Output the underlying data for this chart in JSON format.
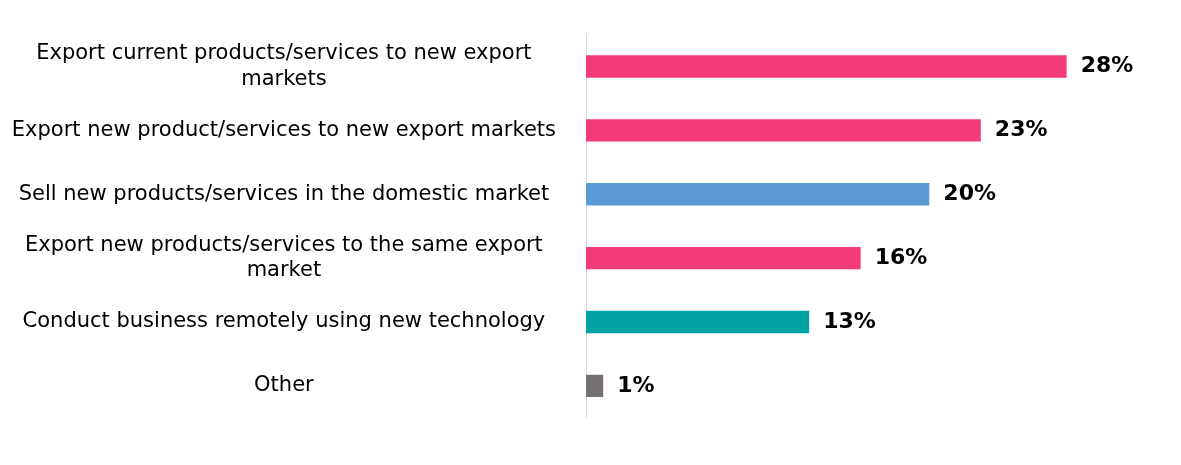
{
  "chart_data": {
    "type": "bar",
    "orientation": "horizontal",
    "categories": [
      "Export current products/services to new export markets",
      "Export new product/services to new export markets",
      "Sell new products/services in the domestic market",
      "Export new products/services to the same export market",
      "Conduct business remotely using new technology",
      "Other"
    ],
    "values": [
      28,
      23,
      20,
      16,
      13,
      1
    ],
    "colors": [
      "#f33b7b",
      "#f33b7b",
      "#5b9bd5",
      "#f33b7b",
      "#00a3a3",
      "#767171"
    ],
    "value_labels": [
      "28%",
      "23%",
      "20%",
      "16%",
      "13%",
      "1%"
    ],
    "legend": false
  }
}
